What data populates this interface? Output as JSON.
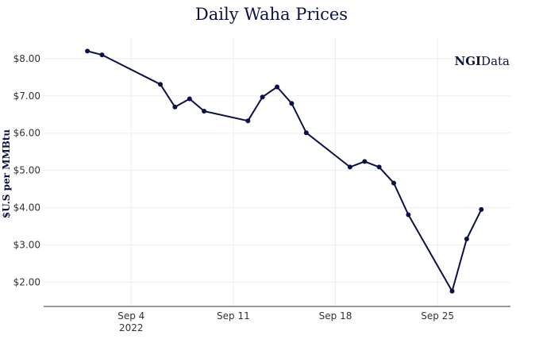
{
  "chart_data": {
    "type": "line",
    "title": "Daily Waha Prices",
    "xlabel": "",
    "ylabel": "$U.S per MMBtu",
    "xlim": [
      "2022-08-29",
      "2022-09-30"
    ],
    "ylim": [
      1.35,
      8.55
    ],
    "yticks": [
      2,
      3,
      4,
      5,
      6,
      7,
      8
    ],
    "ytick_labels": [
      "$2.00",
      "$3.00",
      "$4.00",
      "$5.00",
      "$6.00",
      "$7.00",
      "$8.00"
    ],
    "xticks": [
      {
        "date": "2022-09-04",
        "label": "Sep 4",
        "sublabel": "2022"
      },
      {
        "date": "2022-09-11",
        "label": "Sep 11",
        "sublabel": ""
      },
      {
        "date": "2022-09-18",
        "label": "Sep 18",
        "sublabel": ""
      },
      {
        "date": "2022-09-25",
        "label": "Sep 25",
        "sublabel": ""
      }
    ],
    "grid": true,
    "series": [
      {
        "name": "Waha",
        "color": "#0b1046",
        "x": [
          "2022-09-01",
          "2022-09-02",
          "2022-09-06",
          "2022-09-07",
          "2022-09-08",
          "2022-09-09",
          "2022-09-12",
          "2022-09-13",
          "2022-09-14",
          "2022-09-15",
          "2022-09-16",
          "2022-09-19",
          "2022-09-20",
          "2022-09-21",
          "2022-09-22",
          "2022-09-23",
          "2022-09-26",
          "2022-09-27",
          "2022-09-28"
        ],
        "y": [
          8.2,
          8.1,
          7.31,
          6.7,
          6.92,
          6.59,
          6.33,
          6.97,
          7.24,
          6.8,
          6.01,
          5.09,
          5.24,
          5.09,
          4.66,
          3.81,
          1.76,
          3.16,
          3.95
        ]
      }
    ]
  },
  "logo": {
    "brand": "NGI",
    "suffix": "Data"
  }
}
